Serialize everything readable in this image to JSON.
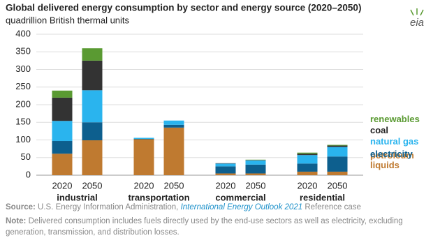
{
  "chart_data": {
    "type": "stacked-bar",
    "title": "Global delivered energy consumption by sector and energy source (2020–2050)",
    "subtitle": "quadrillion British thermal units",
    "logo": "eia",
    "categories": [
      "2020",
      "2050",
      "2020",
      "2050",
      "2020",
      "2050",
      "2020",
      "2050"
    ],
    "groups": [
      "industrial",
      "transportation",
      "commercial",
      "residential"
    ],
    "series": [
      {
        "name": "petroleum liquids",
        "color": "#bf7a30",
        "values": [
          61,
          99,
          102,
          135,
          5,
          5,
          10,
          10
        ]
      },
      {
        "name": "electricity",
        "color": "#0d5f8e",
        "values": [
          36,
          51,
          1,
          8,
          20,
          25,
          23,
          43
        ]
      },
      {
        "name": "natural gas",
        "color": "#2ab4ee",
        "values": [
          57,
          91,
          3,
          12,
          8,
          12,
          24,
          27
        ]
      },
      {
        "name": "coal",
        "color": "#333333",
        "values": [
          66,
          84,
          0,
          0,
          1,
          1,
          4,
          4
        ]
      },
      {
        "name": "renewables",
        "color": "#5a9a32",
        "values": [
          20,
          35,
          0,
          0,
          0,
          1,
          3,
          2
        ]
      }
    ],
    "ylim": [
      0,
      400
    ],
    "yticks": [
      0,
      50,
      100,
      150,
      200,
      250,
      300,
      350,
      400
    ],
    "grid": true
  },
  "source": {
    "label": "Source:",
    "text": "U.S. Energy Information Administration,",
    "link": "International Energy Outlook 2021",
    "tail": "Reference case"
  },
  "note": {
    "label": "Note:",
    "text": "Delivered consumption includes fuels directly used by the end-use sectors as well as electricity, excluding generation, transmission, and distribution losses."
  }
}
